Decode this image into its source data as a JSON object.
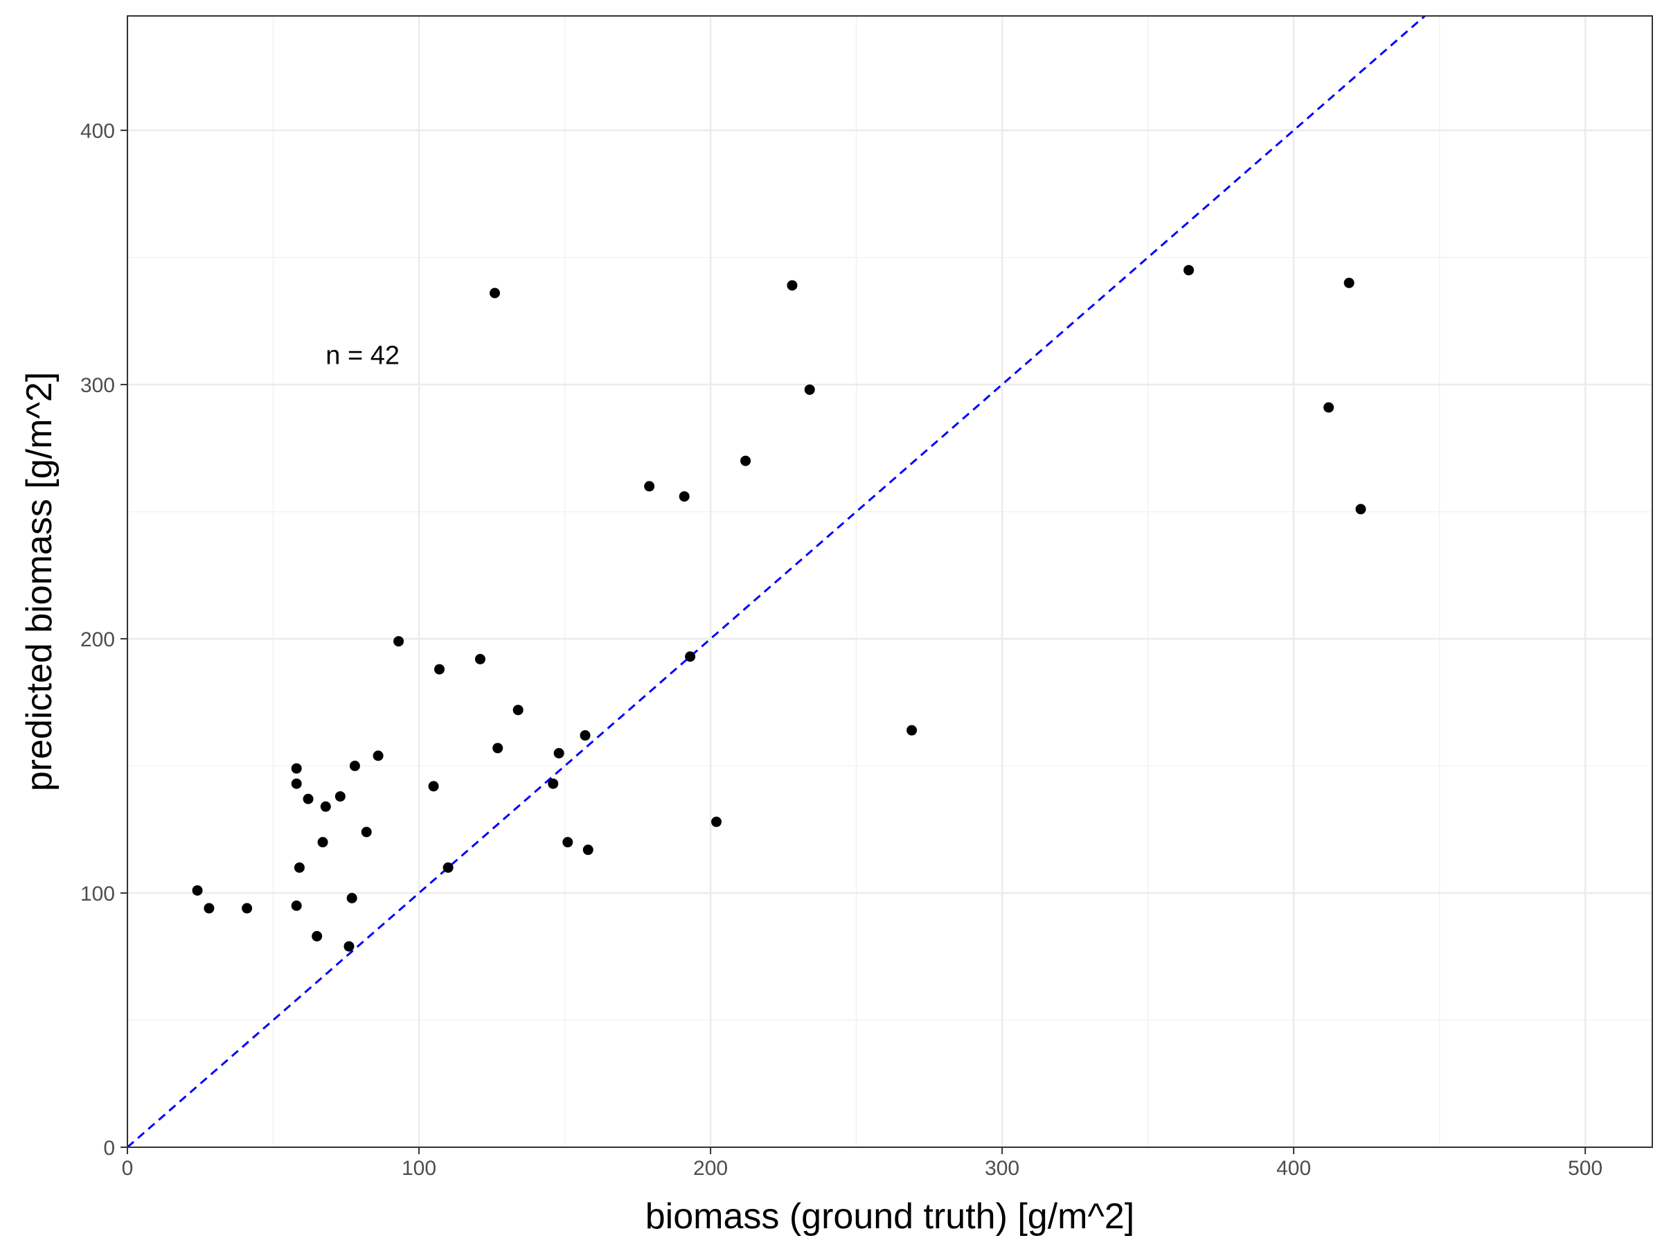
{
  "chart_data": {
    "type": "scatter",
    "xlabel": "biomass (ground truth) [g/m^2]",
    "ylabel": "predicted biomass [g/m^2]",
    "xlim": [
      0,
      523
    ],
    "ylim": [
      0,
      445
    ],
    "x_ticks": [
      0,
      100,
      200,
      300,
      400,
      500
    ],
    "y_ticks": [
      0,
      100,
      200,
      300,
      400
    ],
    "grid": true,
    "annotation": {
      "text": "n =  42",
      "x": 68,
      "y": 308
    },
    "reference_line": {
      "type": "identity",
      "style": "dashed",
      "color": "#0000ff"
    },
    "point_color": "#000000",
    "points": [
      {
        "x": 24,
        "y": 101
      },
      {
        "x": 28,
        "y": 94
      },
      {
        "x": 41,
        "y": 94
      },
      {
        "x": 58,
        "y": 149
      },
      {
        "x": 58,
        "y": 143
      },
      {
        "x": 58,
        "y": 95
      },
      {
        "x": 59,
        "y": 110
      },
      {
        "x": 62,
        "y": 137
      },
      {
        "x": 65,
        "y": 83
      },
      {
        "x": 67,
        "y": 120
      },
      {
        "x": 68,
        "y": 134
      },
      {
        "x": 73,
        "y": 138
      },
      {
        "x": 76,
        "y": 79
      },
      {
        "x": 77,
        "y": 98
      },
      {
        "x": 78,
        "y": 150
      },
      {
        "x": 82,
        "y": 124
      },
      {
        "x": 86,
        "y": 154
      },
      {
        "x": 93,
        "y": 199
      },
      {
        "x": 105,
        "y": 142
      },
      {
        "x": 107,
        "y": 188
      },
      {
        "x": 110,
        "y": 110
      },
      {
        "x": 121,
        "y": 192
      },
      {
        "x": 126,
        "y": 336
      },
      {
        "x": 127,
        "y": 157
      },
      {
        "x": 134,
        "y": 172
      },
      {
        "x": 146,
        "y": 143
      },
      {
        "x": 148,
        "y": 155
      },
      {
        "x": 151,
        "y": 120
      },
      {
        "x": 157,
        "y": 162
      },
      {
        "x": 158,
        "y": 117
      },
      {
        "x": 179,
        "y": 260
      },
      {
        "x": 191,
        "y": 256
      },
      {
        "x": 193,
        "y": 193
      },
      {
        "x": 202,
        "y": 128
      },
      {
        "x": 212,
        "y": 270
      },
      {
        "x": 228,
        "y": 339
      },
      {
        "x": 234,
        "y": 298
      },
      {
        "x": 269,
        "y": 164
      },
      {
        "x": 364,
        "y": 345
      },
      {
        "x": 412,
        "y": 291
      },
      {
        "x": 419,
        "y": 340
      },
      {
        "x": 423,
        "y": 251
      }
    ]
  }
}
